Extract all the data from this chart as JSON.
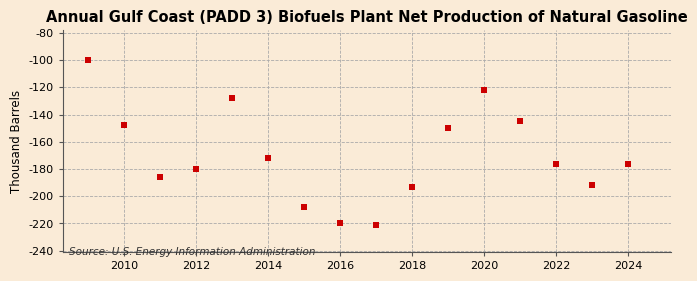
{
  "title": "Annual Gulf Coast (PADD 3) Biofuels Plant Net Production of Natural Gasoline",
  "ylabel": "Thousand Barrels",
  "source": "Source: U.S. Energy Information Administration",
  "background_color": "#faebd7",
  "grid_color": "#aaaaaa",
  "point_color": "#cc0000",
  "spine_color": "#555555",
  "years": [
    2009,
    2010,
    2011,
    2012,
    2013,
    2014,
    2015,
    2016,
    2017,
    2018,
    2019,
    2020,
    2021,
    2022,
    2023,
    2024
  ],
  "values": [
    -100,
    -148,
    -186,
    -180,
    -128,
    -172,
    -208,
    -220,
    -221,
    -193,
    -150,
    -122,
    -145,
    -176,
    -192,
    -176
  ],
  "ylim": [
    -241,
    -78
  ],
  "yticks": [
    -80,
    -100,
    -120,
    -140,
    -160,
    -180,
    -200,
    -220,
    -240
  ],
  "xlim": [
    2008.3,
    2025.2
  ],
  "xticks": [
    2010,
    2012,
    2014,
    2016,
    2018,
    2020,
    2022,
    2024
  ],
  "title_fontsize": 10.5,
  "label_fontsize": 8.5,
  "tick_fontsize": 8,
  "source_fontsize": 7.5
}
